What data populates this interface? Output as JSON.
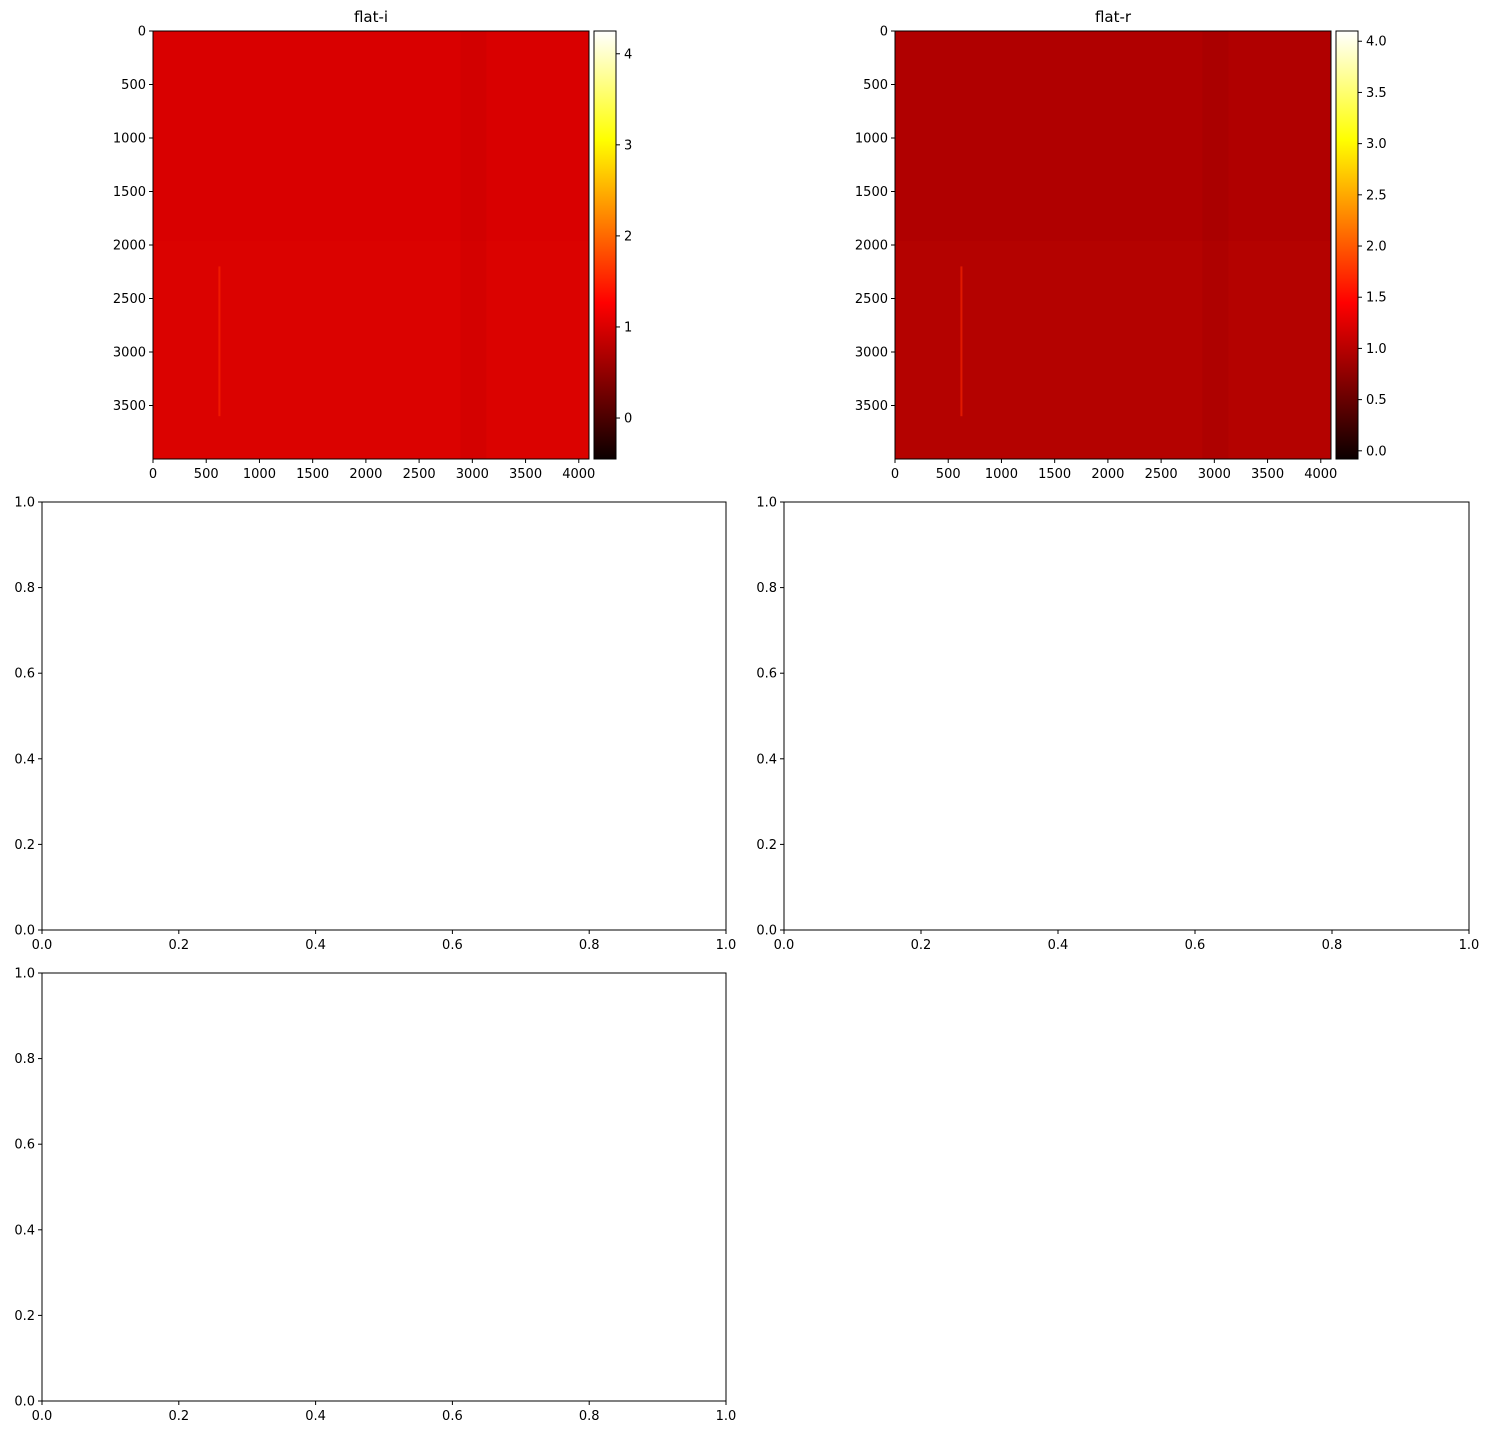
{
  "figure": {
    "background": "#ffffff"
  },
  "chart_data": [
    {
      "id": "flat-i",
      "type": "heatmap",
      "title": "flat-i",
      "xlabel": "",
      "ylabel": "",
      "xlim": [
        0,
        4096
      ],
      "ylim": [
        4000,
        0
      ],
      "xticks": [
        0,
        500,
        1000,
        1500,
        2000,
        2500,
        3000,
        3500,
        4000
      ],
      "yticks": [
        0,
        500,
        1000,
        1500,
        2000,
        2500,
        3000,
        3500
      ],
      "colormap": "hot",
      "dominant_color": "#d90000",
      "colorbar": {
        "vmin": -0.45,
        "vmax": 4.25,
        "ticks": [
          0,
          1,
          2,
          3,
          4
        ]
      }
    },
    {
      "id": "flat-r",
      "type": "heatmap",
      "title": "flat-r",
      "xlabel": "",
      "ylabel": "",
      "xlim": [
        0,
        4096
      ],
      "ylim": [
        4000,
        0
      ],
      "xticks": [
        0,
        500,
        1000,
        1500,
        2000,
        2500,
        3000,
        3500,
        4000
      ],
      "yticks": [
        0,
        500,
        1000,
        1500,
        2000,
        2500,
        3000,
        3500
      ],
      "colormap": "hot",
      "dominant_color": "#b00000",
      "colorbar": {
        "vmin": -0.08,
        "vmax": 4.1,
        "ticks": [
          0.0,
          0.5,
          1.0,
          1.5,
          2.0,
          2.5,
          3.0,
          3.5,
          4.0
        ]
      }
    },
    {
      "id": "empty-1",
      "type": "scatter",
      "title": "",
      "xlabel": "",
      "ylabel": "",
      "xlim": [
        0,
        1
      ],
      "ylim": [
        0,
        1
      ],
      "xticks": [
        0.0,
        0.2,
        0.4,
        0.6,
        0.8,
        1.0
      ],
      "yticks": [
        0.0,
        0.2,
        0.4,
        0.6,
        0.8,
        1.0
      ]
    },
    {
      "id": "empty-2",
      "type": "scatter",
      "title": "",
      "xlabel": "",
      "ylabel": "",
      "xlim": [
        0,
        1
      ],
      "ylim": [
        0,
        1
      ],
      "xticks": [
        0.0,
        0.2,
        0.4,
        0.6,
        0.8,
        1.0
      ],
      "yticks": [
        0.0,
        0.2,
        0.4,
        0.6,
        0.8,
        1.0
      ]
    },
    {
      "id": "empty-3",
      "type": "scatter",
      "title": "",
      "xlabel": "",
      "ylabel": "",
      "xlim": [
        0,
        1
      ],
      "ylim": [
        0,
        1
      ],
      "xticks": [
        0.0,
        0.2,
        0.4,
        0.6,
        0.8,
        1.0
      ],
      "yticks": [
        0.0,
        0.2,
        0.4,
        0.6,
        0.8,
        1.0
      ]
    }
  ]
}
